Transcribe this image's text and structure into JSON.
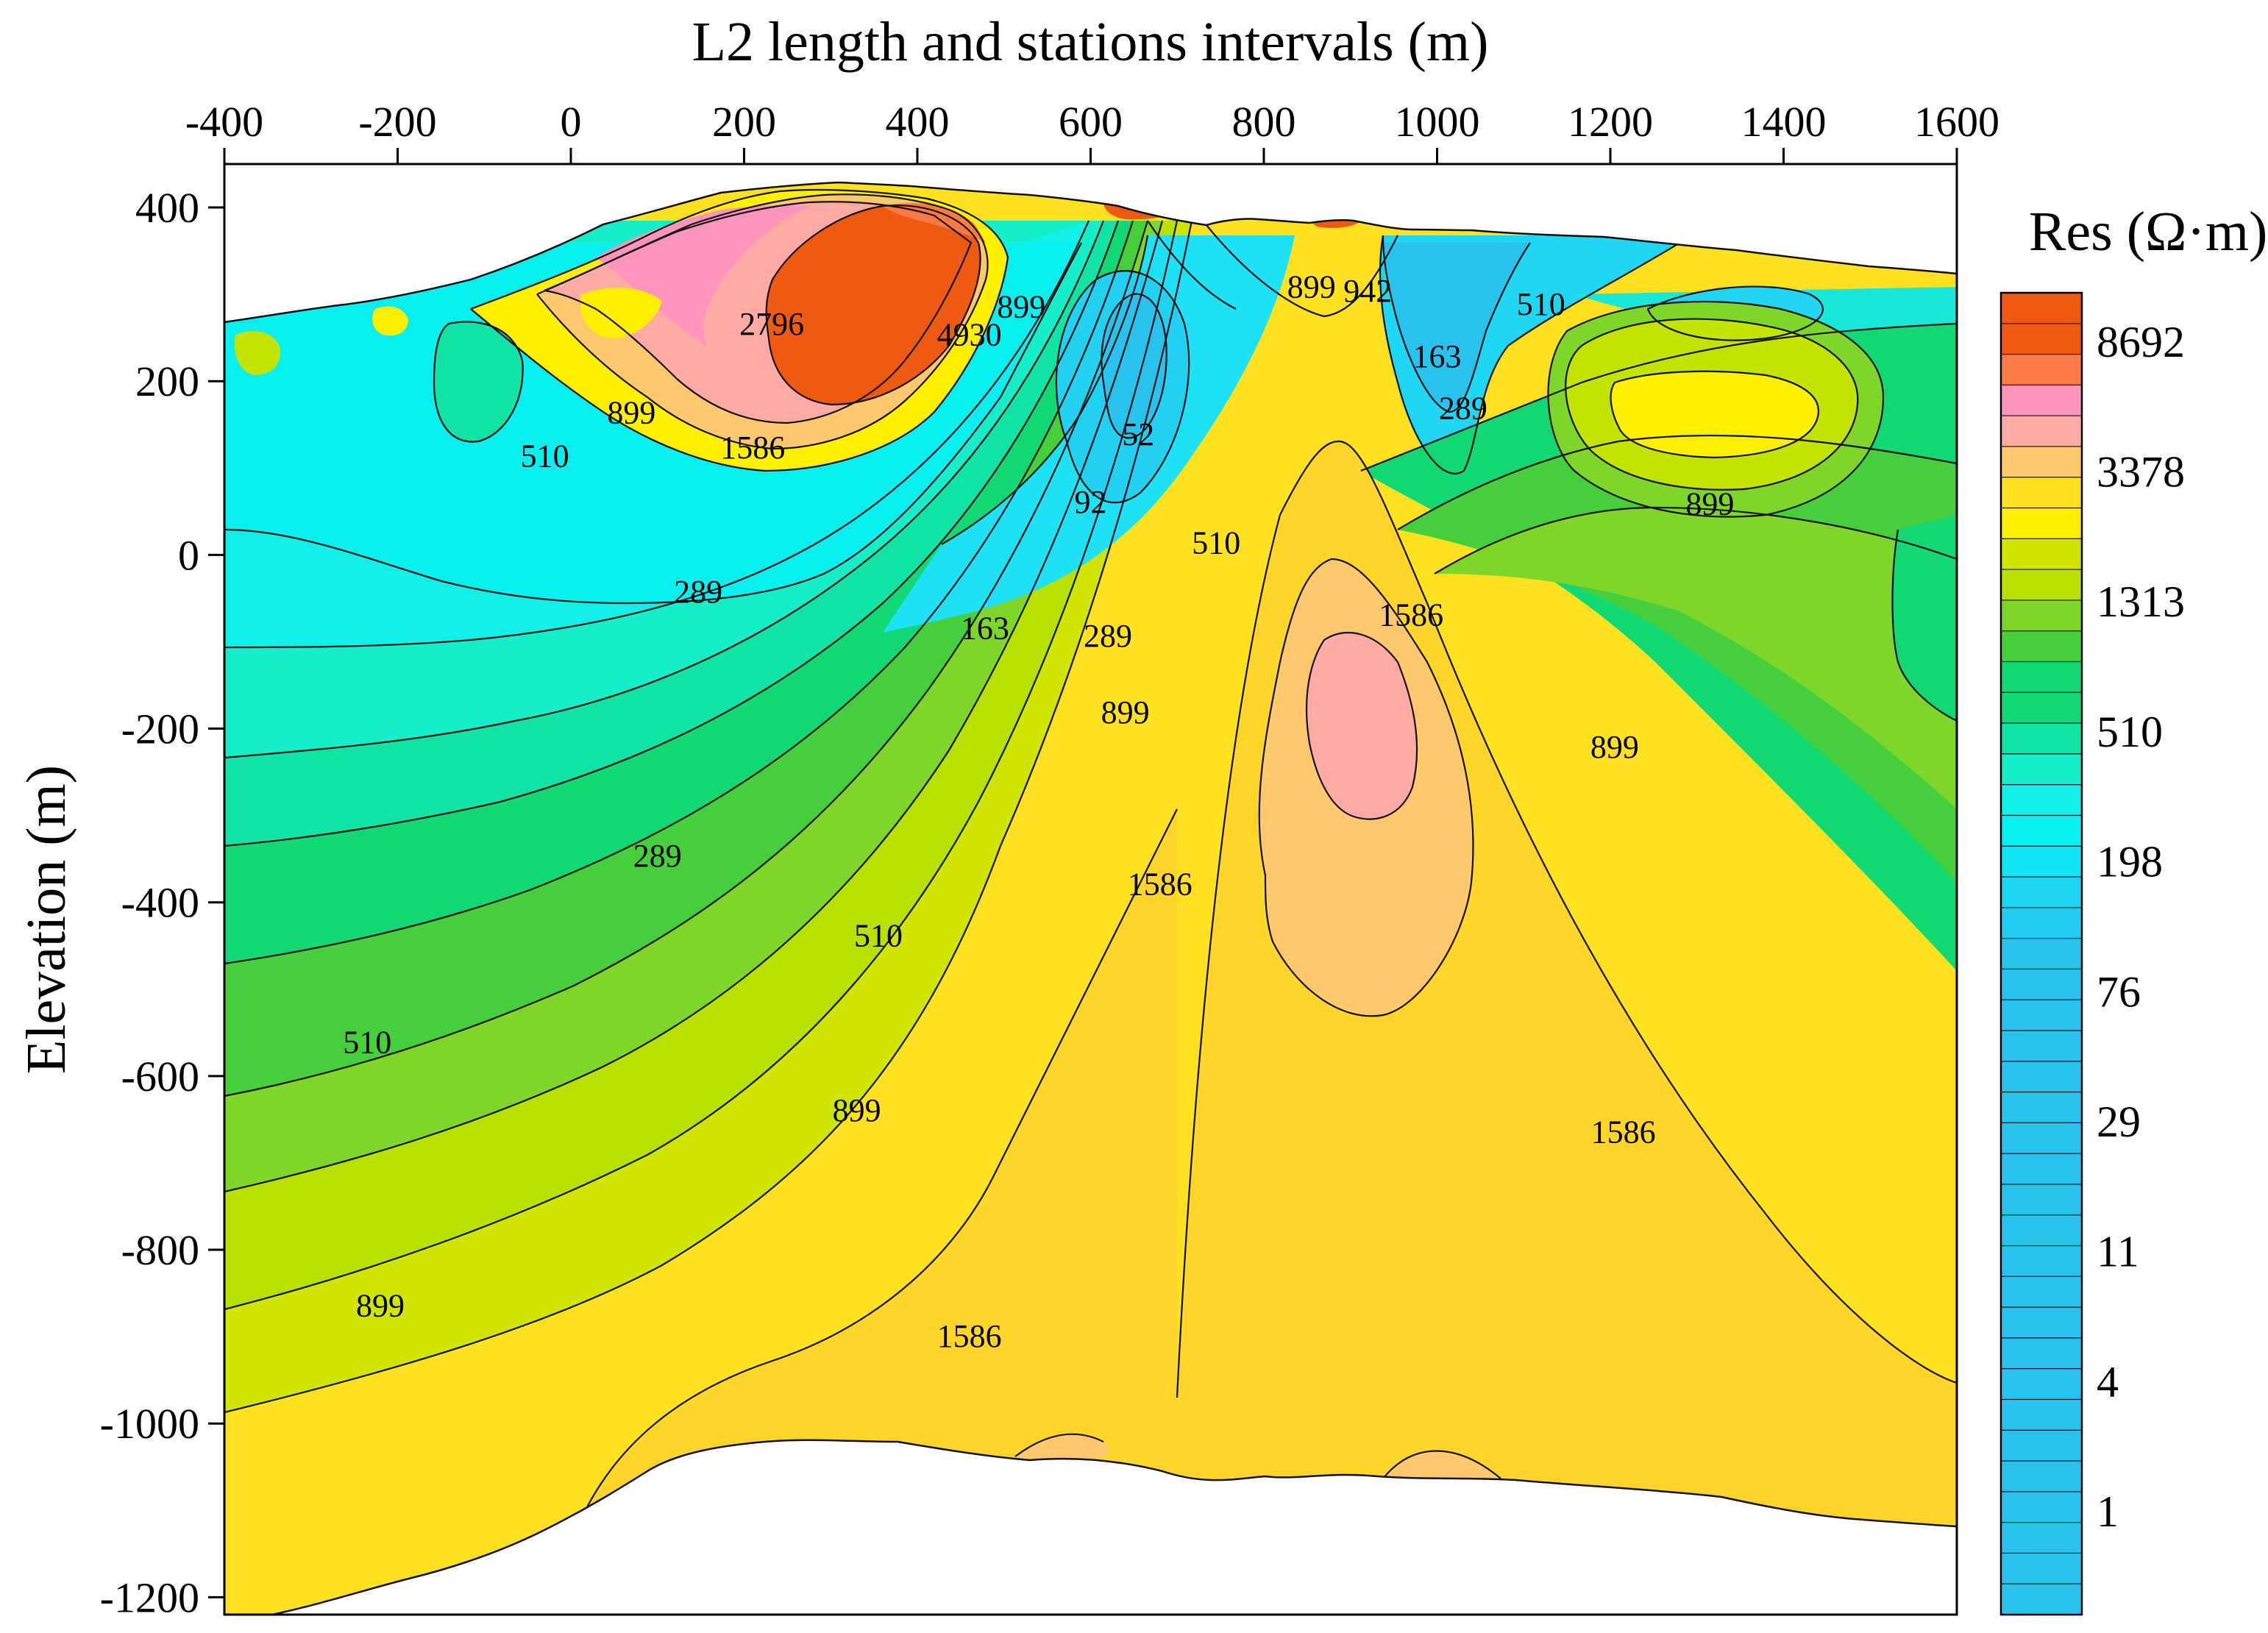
{
  "chart_data": {
    "type": "heatmap",
    "subtype": "filled-contour resistivity cross-section",
    "title": "",
    "xlabel": "L2 length and stations intervals (m)",
    "ylabel": "Elevation (m)",
    "x_axis_position": "top",
    "xlim": [
      -400,
      1600
    ],
    "ylim": [
      -1220,
      450
    ],
    "x_ticks": [
      "-400",
      "-200",
      "0",
      "200",
      "400",
      "600",
      "800",
      "1000",
      "1200",
      "1400",
      "1600"
    ],
    "y_ticks": [
      "400",
      "200",
      "0",
      "-200",
      "-400",
      "-600",
      "-800",
      "-1000",
      "-1200"
    ],
    "colorbar": {
      "title": "Res (Ω·m)",
      "scale": "log",
      "labels": [
        "8692",
        "3378",
        "1313",
        "510",
        "198",
        "76",
        "29",
        "11",
        "4",
        "1"
      ],
      "color_low": "#29c2ef",
      "color_high": "#ee5a12"
    },
    "contour_labels": [
      {
        "text": "2796",
        "x": 232,
        "y": 262
      },
      {
        "text": "4930",
        "x": 460,
        "y": 250
      },
      {
        "text": "899",
        "x": 520,
        "y": 282
      },
      {
        "text": "899",
        "x": 70,
        "y": 160
      },
      {
        "text": "1586",
        "x": 210,
        "y": 120
      },
      {
        "text": "510",
        "x": -30,
        "y": 110
      },
      {
        "text": "52",
        "x": 655,
        "y": 135
      },
      {
        "text": "92",
        "x": 600,
        "y": 57
      },
      {
        "text": "510",
        "x": 745,
        "y": 10
      },
      {
        "text": "289",
        "x": 147,
        "y": -46
      },
      {
        "text": "163",
        "x": 478,
        "y": -88
      },
      {
        "text": "289",
        "x": 620,
        "y": -97
      },
      {
        "text": "899",
        "x": 640,
        "y": -185
      },
      {
        "text": "899",
        "x": 855,
        "y": 305
      },
      {
        "text": "942",
        "x": 920,
        "y": 300
      },
      {
        "text": "163",
        "x": 1000,
        "y": 225
      },
      {
        "text": "289",
        "x": 1030,
        "y": 165
      },
      {
        "text": "510",
        "x": 1120,
        "y": 285
      },
      {
        "text": "899",
        "x": 1315,
        "y": 55
      },
      {
        "text": "1586",
        "x": 970,
        "y": -73
      },
      {
        "text": "899",
        "x": 1205,
        "y": -225
      },
      {
        "text": "289",
        "x": 100,
        "y": -350
      },
      {
        "text": "510",
        "x": 355,
        "y": -442
      },
      {
        "text": "510",
        "x": -235,
        "y": -565
      },
      {
        "text": "1586",
        "x": 680,
        "y": -383
      },
      {
        "text": "899",
        "x": 330,
        "y": -643
      },
      {
        "text": "899",
        "x": -220,
        "y": -868
      },
      {
        "text": "1586",
        "x": 1215,
        "y": -668
      },
      {
        "text": "1586",
        "x": 460,
        "y": -903
      }
    ]
  }
}
